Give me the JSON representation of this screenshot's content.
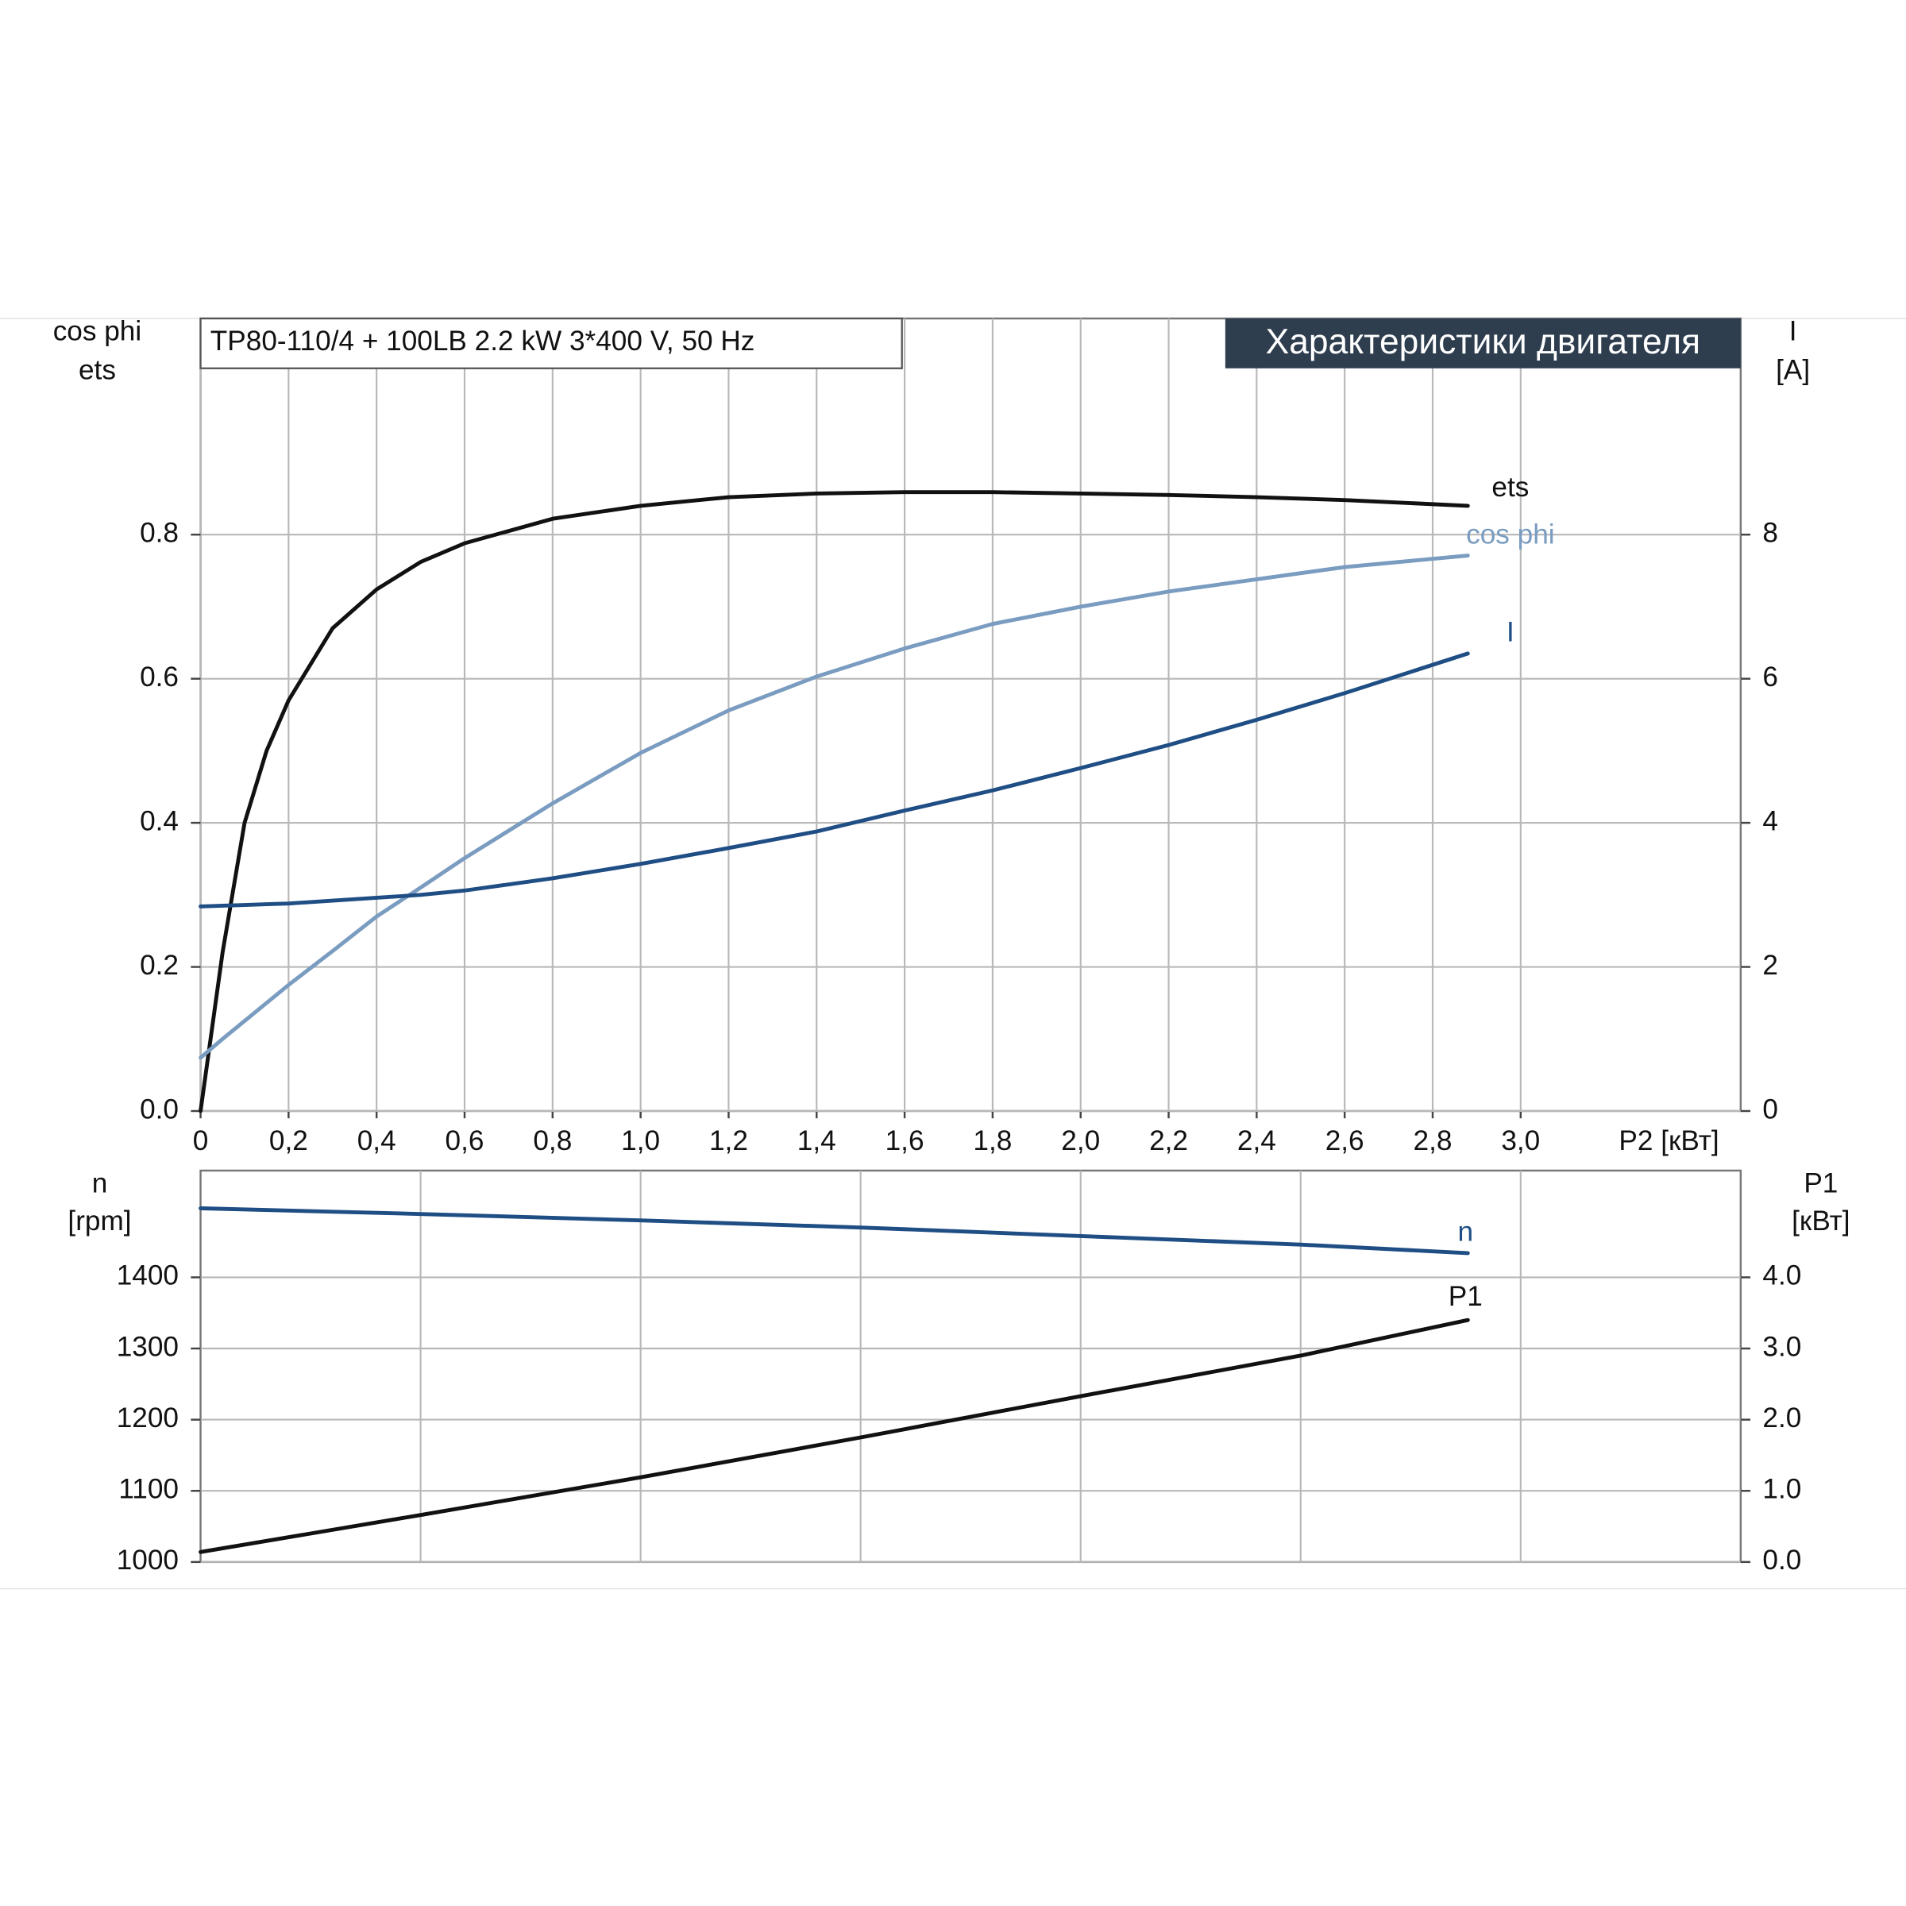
{
  "chart_data": [
    {
      "type": "line",
      "title": "TP80-110/4 + 100LB   2.2 kW   3*400 V, 50 Hz",
      "subtitle": "Характеристики двигателя",
      "ylabel": [
        "cos phi",
        "ets"
      ],
      "y2label": [
        "I",
        "[A]"
      ],
      "xlabel": "P2 [кВт]",
      "xlim": [
        0,
        3.5
      ],
      "xticks": [
        0,
        {
          "value": 0.2,
          "label": "0,2"
        },
        {
          "value": 0.4,
          "label": "0,4"
        },
        {
          "value": 0.6,
          "label": "0,6"
        },
        {
          "value": 0.8,
          "label": "0,8"
        },
        {
          "value": 1.0,
          "label": "1,0"
        },
        {
          "value": 1.2,
          "label": "1,2"
        },
        {
          "value": 1.4,
          "label": "1,4"
        },
        {
          "value": 1.6,
          "label": "1,6"
        },
        {
          "value": 1.8,
          "label": "1,8"
        },
        {
          "value": 2.0,
          "label": "2,0"
        },
        {
          "value": 2.2,
          "label": "2,2"
        },
        {
          "value": 2.4,
          "label": "2,4"
        },
        {
          "value": 2.6,
          "label": "2,6"
        },
        {
          "value": 2.8,
          "label": "2,8"
        },
        {
          "value": 3.0,
          "label": "3,0"
        }
      ],
      "ylim": [
        0,
        1.1
      ],
      "yticks": [
        {
          "value": 0,
          "label": "0.0"
        },
        0.2,
        0.4,
        0.6,
        0.8
      ],
      "y2lim": [
        0,
        11
      ],
      "y2ticks": [
        0,
        2,
        4,
        6,
        8
      ],
      "grid": true,
      "x": [
        0,
        0.05,
        0.1,
        0.15,
        0.2,
        0.3,
        0.4,
        0.5,
        0.6,
        0.8,
        1.0,
        1.2,
        1.4,
        1.6,
        1.8,
        2.0,
        2.2,
        2.4,
        2.6,
        2.88
      ],
      "series": [
        {
          "name": "ets",
          "color": "#111111",
          "values": [
            0,
            0.22,
            0.4,
            0.5,
            0.57,
            0.67,
            0.724,
            0.762,
            0.788,
            0.822,
            0.84,
            0.852,
            0.857,
            0.859,
            0.859,
            0.857,
            0.855,
            0.852,
            0.848,
            0.84
          ]
        },
        {
          "name": "cos phi",
          "color": "#7a9cc0",
          "values": [
            0.074,
            0.1,
            0.125,
            0.15,
            0.175,
            0.222,
            0.27,
            0.31,
            0.351,
            0.427,
            0.497,
            0.556,
            0.603,
            0.642,
            0.676,
            0.7,
            0.721,
            0.738,
            0.755,
            0.771
          ]
        },
        {
          "name": "I",
          "color": "#1f4e85",
          "axis": "y2",
          "values": [
            2.84,
            2.85,
            2.86,
            2.87,
            2.88,
            2.92,
            2.96,
            3.0,
            3.06,
            3.23,
            3.43,
            3.65,
            3.88,
            4.17,
            4.45,
            4.76,
            5.08,
            5.43,
            5.8,
            6.35
          ]
        }
      ]
    },
    {
      "type": "line",
      "ylabel": [
        "n",
        "[rpm]"
      ],
      "y2label": [
        "P1",
        "[кВт]"
      ],
      "xlim": [
        0,
        3.5
      ],
      "xgrid": [
        0.5,
        1.0,
        1.5,
        2.0,
        2.5,
        3.0
      ],
      "ylim": [
        1000,
        1550
      ],
      "yticks": [
        1000,
        1100,
        1200,
        1300,
        1400
      ],
      "y2lim": [
        0,
        5.5
      ],
      "y2ticks": [
        {
          "value": 0,
          "label": "0.0"
        },
        {
          "value": 1,
          "label": "1.0"
        },
        {
          "value": 2,
          "label": "2.0"
        },
        {
          "value": 3,
          "label": "3.0"
        },
        {
          "value": 4,
          "label": "4.0"
        }
      ],
      "grid": true,
      "x": [
        0,
        0.5,
        1.0,
        1.5,
        2.0,
        2.5,
        2.88
      ],
      "series": [
        {
          "name": "n",
          "color": "#1f4e85",
          "values": [
            1497,
            1489,
            1480,
            1470,
            1458,
            1446,
            1434
          ]
        },
        {
          "name": "P1",
          "color": "#111111",
          "axis": "y2",
          "values": [
            0.14,
            0.66,
            1.19,
            1.75,
            2.33,
            2.9,
            3.4
          ]
        }
      ]
    }
  ]
}
